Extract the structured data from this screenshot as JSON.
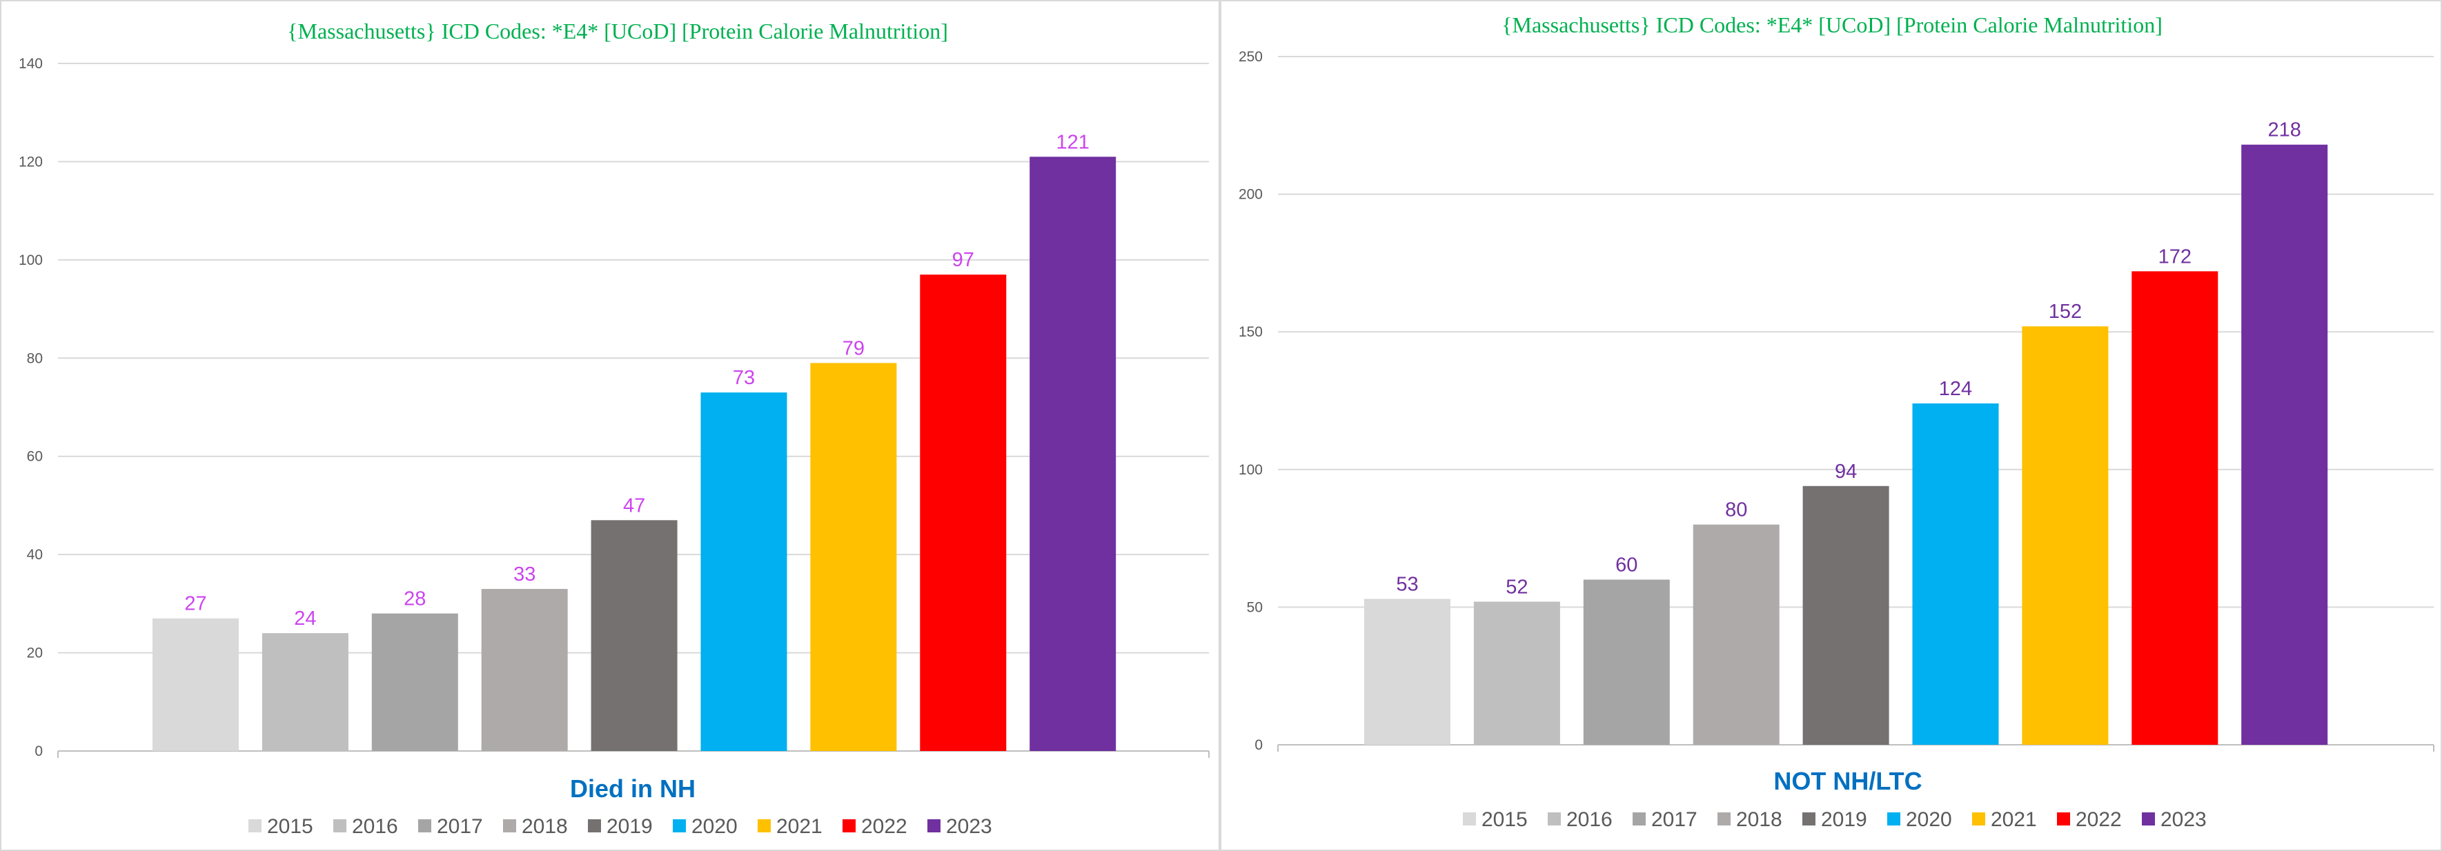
{
  "chart_data": [
    {
      "type": "bar",
      "title": "{Massachusetts}   ICD Codes: *E4* [UCoD] [Protein Calorie Malnutrition]",
      "xlabel": "Died in NH",
      "ylabel": "",
      "categories": [
        "2015",
        "2016",
        "2017",
        "2018",
        "2019",
        "2020",
        "2021",
        "2022",
        "2023"
      ],
      "values": [
        27,
        24,
        28,
        33,
        47,
        73,
        79,
        97,
        121
      ],
      "colors": [
        "#d9d9d9",
        "#bfbfbf",
        "#a5a5a5",
        "#aeaaaa",
        "#757171",
        "#00b0f0",
        "#ffc000",
        "#ff0000",
        "#7030a0"
      ],
      "ylim": [
        0,
        140
      ],
      "yticks": [
        0,
        20,
        40,
        60,
        80,
        100,
        120,
        140
      ],
      "grid": true,
      "legend_position": "bottom",
      "label_color": "#cc44ee",
      "title_color": "#00b050",
      "xlabel_color": "#0070c0"
    },
    {
      "type": "bar",
      "title": "{Massachusetts}   ICD Codes: *E4* [UCoD] [Protein Calorie Malnutrition]",
      "xlabel": "NOT NH/LTC",
      "ylabel": "",
      "categories": [
        "2015",
        "2016",
        "2017",
        "2018",
        "2019",
        "2020",
        "2021",
        "2022",
        "2023"
      ],
      "values": [
        53,
        52,
        60,
        80,
        94,
        124,
        152,
        172,
        218
      ],
      "colors": [
        "#d9d9d9",
        "#bfbfbf",
        "#a5a5a5",
        "#aeaaaa",
        "#757171",
        "#00b0f0",
        "#ffc000",
        "#ff0000",
        "#7030a0"
      ],
      "ylim": [
        0,
        250
      ],
      "yticks": [
        0,
        50,
        100,
        150,
        200,
        250
      ],
      "grid": true,
      "legend_position": "bottom",
      "label_color": "#7030a0",
      "title_color": "#00b050",
      "xlabel_color": "#0070c0"
    }
  ]
}
